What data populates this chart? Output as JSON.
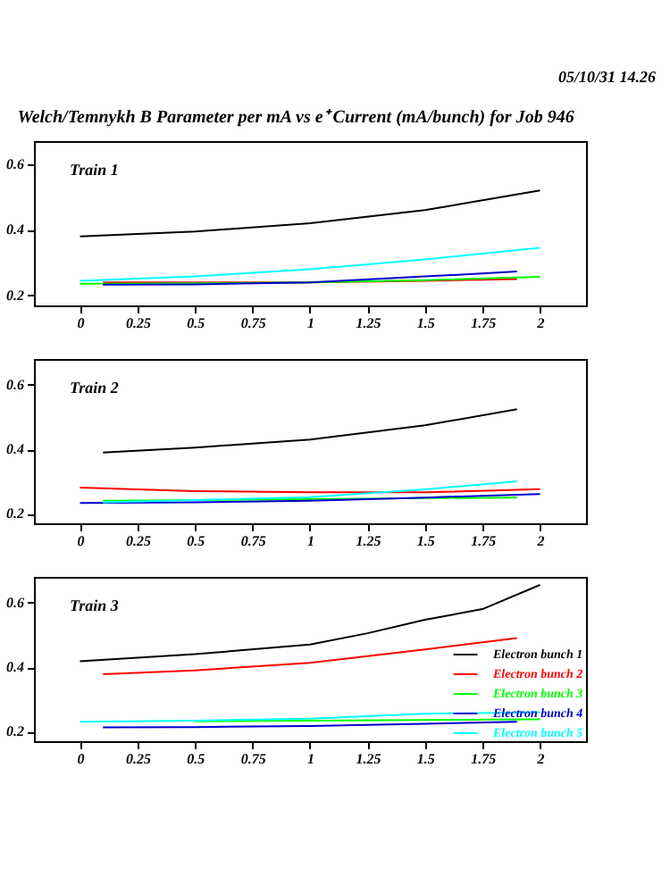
{
  "chart_data": [
    {
      "type": "line",
      "title": "Welch/Temnykh B Parameter per mA vs e⁺ Current (mA/bunch) for Job 946",
      "annotations": [
        "05/10/31 14.26",
        "Train 1"
      ],
      "xlim": [
        -0.2,
        2.2
      ],
      "xticks": [
        0,
        0.25,
        0.5,
        0.75,
        1,
        1.25,
        1.5,
        1.75,
        2
      ],
      "ylim": [
        0.17,
        0.67
      ],
      "yticks": [
        0.2,
        0.4,
        0.6
      ],
      "grid": false,
      "legend": false,
      "marker": "none",
      "series": [
        {
          "color": "#000000",
          "x": [
            0,
            0.5,
            1,
            1.5,
            2
          ],
          "values": [
            0.38,
            0.395,
            0.42,
            0.46,
            0.52
          ]
        },
        {
          "color": "#ff0000",
          "x": [
            0.1,
            0.5,
            1,
            1.5,
            1.9
          ],
          "values": [
            0.24,
            0.24,
            0.24,
            0.245,
            0.25
          ]
        },
        {
          "color": "#00ff00",
          "x": [
            0,
            0.5,
            1,
            1.5,
            2
          ],
          "values": [
            0.236,
            0.237,
            0.24,
            0.247,
            0.257
          ]
        },
        {
          "color": "#0000cc",
          "x": [
            0.1,
            0.5,
            1,
            1.5,
            1.9
          ],
          "values": [
            0.233,
            0.234,
            0.24,
            0.258,
            0.273
          ]
        },
        {
          "color": "#00ffff",
          "x": [
            0,
            0.5,
            1,
            1.5,
            2
          ],
          "values": [
            0.245,
            0.258,
            0.28,
            0.31,
            0.345
          ]
        }
      ]
    },
    {
      "type": "line",
      "annotations": [
        "Train 2"
      ],
      "xlim": [
        -0.2,
        2.2
      ],
      "xticks": [
        0,
        0.25,
        0.5,
        0.75,
        1,
        1.25,
        1.5,
        1.75,
        2
      ],
      "ylim": [
        0.17,
        0.68
      ],
      "yticks": [
        0.2,
        0.4,
        0.6
      ],
      "grid": false,
      "legend": false,
      "marker": "none",
      "series": [
        {
          "color": "#000000",
          "x": [
            0.1,
            0.5,
            1,
            1.5,
            1.9
          ],
          "values": [
            0.39,
            0.405,
            0.43,
            0.474,
            0.524
          ]
        },
        {
          "color": "#ff0000",
          "x": [
            0,
            0.5,
            1,
            1.5,
            2
          ],
          "values": [
            0.281,
            0.27,
            0.266,
            0.266,
            0.276
          ]
        },
        {
          "color": "#00ff00",
          "x": [
            0.1,
            0.5,
            1,
            1.5,
            1.9
          ],
          "values": [
            0.24,
            0.242,
            0.245,
            0.248,
            0.25
          ]
        },
        {
          "color": "#0000cc",
          "x": [
            0,
            0.5,
            1,
            1.5,
            2
          ],
          "values": [
            0.233,
            0.235,
            0.24,
            0.25,
            0.261
          ]
        },
        {
          "color": "#00ffff",
          "x": [
            0.1,
            0.5,
            1,
            1.5,
            1.9
          ],
          "values": [
            0.235,
            0.242,
            0.251,
            0.275,
            0.3
          ]
        }
      ]
    },
    {
      "type": "line",
      "annotations": [
        "Train 3"
      ],
      "xlim": [
        -0.2,
        2.2
      ],
      "xticks": [
        0,
        0.25,
        0.5,
        0.75,
        1,
        1.25,
        1.5,
        1.75,
        2
      ],
      "ylim": [
        0.17,
        0.68
      ],
      "yticks": [
        0.2,
        0.4,
        0.6
      ],
      "grid": false,
      "legend": "bottom right",
      "marker": "none",
      "series": [
        {
          "name": "Electron bunch 1",
          "color": "#000000",
          "x": [
            0,
            0.5,
            1,
            1.25,
            1.5,
            1.75,
            2
          ],
          "values": [
            0.418,
            0.44,
            0.47,
            0.505,
            0.547,
            0.58,
            0.655
          ]
        },
        {
          "name": "Electron bunch 2",
          "color": "#ff0000",
          "x": [
            0.1,
            0.5,
            1,
            1.5,
            1.9
          ],
          "values": [
            0.378,
            0.39,
            0.413,
            0.455,
            0.49
          ]
        },
        {
          "name": "Electron bunch 3",
          "color": "#00ff00",
          "x": [
            0.5,
            1,
            1.5,
            2
          ],
          "values": [
            0.232,
            0.234,
            0.236,
            0.238
          ]
        },
        {
          "name": "Electron bunch 4",
          "color": "#0000cc",
          "x": [
            0.1,
            0.5,
            1,
            1.5,
            1.9
          ],
          "values": [
            0.213,
            0.214,
            0.217,
            0.224,
            0.23
          ]
        },
        {
          "name": "Electron bunch 5",
          "color": "#00ffff",
          "x": [
            0,
            0.5,
            1,
            1.5,
            2
          ],
          "values": [
            0.23,
            0.234,
            0.24,
            0.255,
            0.26
          ]
        }
      ]
    }
  ]
}
